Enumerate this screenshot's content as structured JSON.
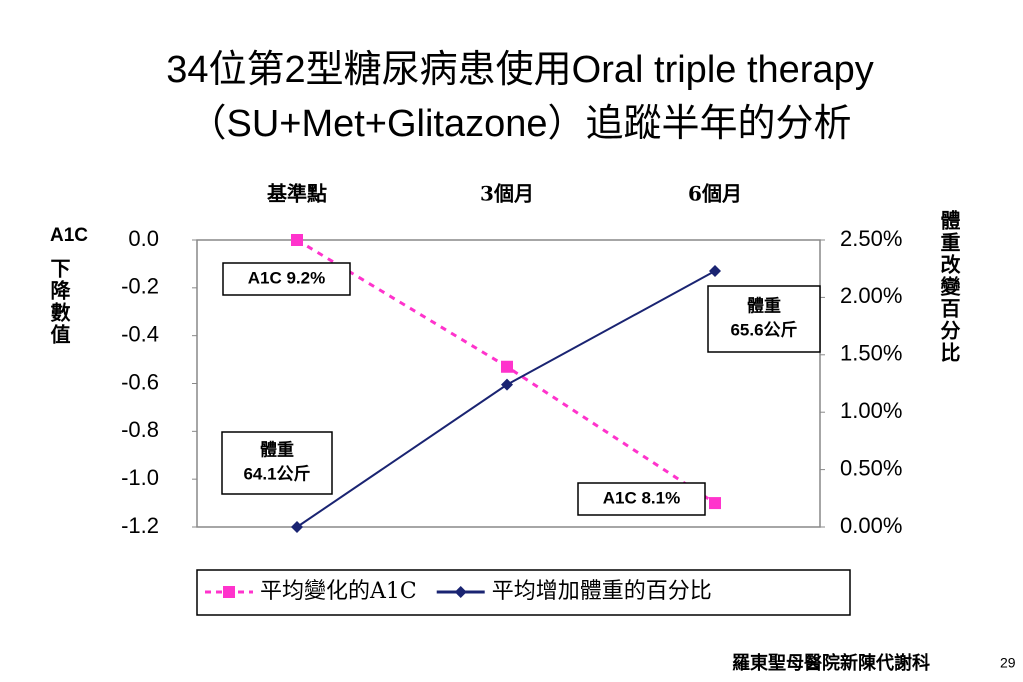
{
  "chart_data": {
    "type": "line",
    "title": [
      "34位第2型糖尿病患使用Oral triple therapy",
      "（SU+Met+Glitazone）追蹤半年的分析"
    ],
    "categories": [
      "基準點",
      "3個月",
      "6個月"
    ],
    "y_label_top": "A1C",
    "y_label": "下降數值",
    "y2_label": "體重改變百分比",
    "series": [
      {
        "name": "平均變化的A1C",
        "color": "#ff33cc",
        "values": [
          0,
          -0.53,
          -1.1
        ]
      },
      {
        "name": "平均增加體重的百分比",
        "color": "#1a2472",
        "values": [
          0,
          1.24,
          2.23
        ],
        "axis": "y2"
      }
    ],
    "ylim": [
      -1.2,
      0
    ],
    "yticks": [
      {
        "value": 0,
        "label": "0.0"
      },
      -0.2,
      -0.4,
      -0.6,
      -0.8,
      {
        "value": -1,
        "label": "-1.0"
      },
      -1.2
    ],
    "y2lim": [
      0,
      2.5
    ],
    "y2ticks": [
      {
        "value": 0,
        "label": "0.00%"
      },
      {
        "value": 0.5,
        "label": "0.50%"
      },
      {
        "value": 1,
        "label": "1.00%"
      },
      {
        "value": 1.5,
        "label": "1.50%"
      },
      {
        "value": 2,
        "label": "2.00%"
      },
      {
        "value": 2.5,
        "label": "2.50%"
      }
    ],
    "grid": false,
    "annotations": [
      [
        "A1C 9.2%"
      ],
      [
        "A1C 8.1%"
      ],
      [
        "體重",
        "64.1公斤"
      ],
      [
        "體重",
        "65.6公斤"
      ]
    ],
    "footer": "羅東聖母醫院新陳代謝科",
    "page_number": "29"
  }
}
